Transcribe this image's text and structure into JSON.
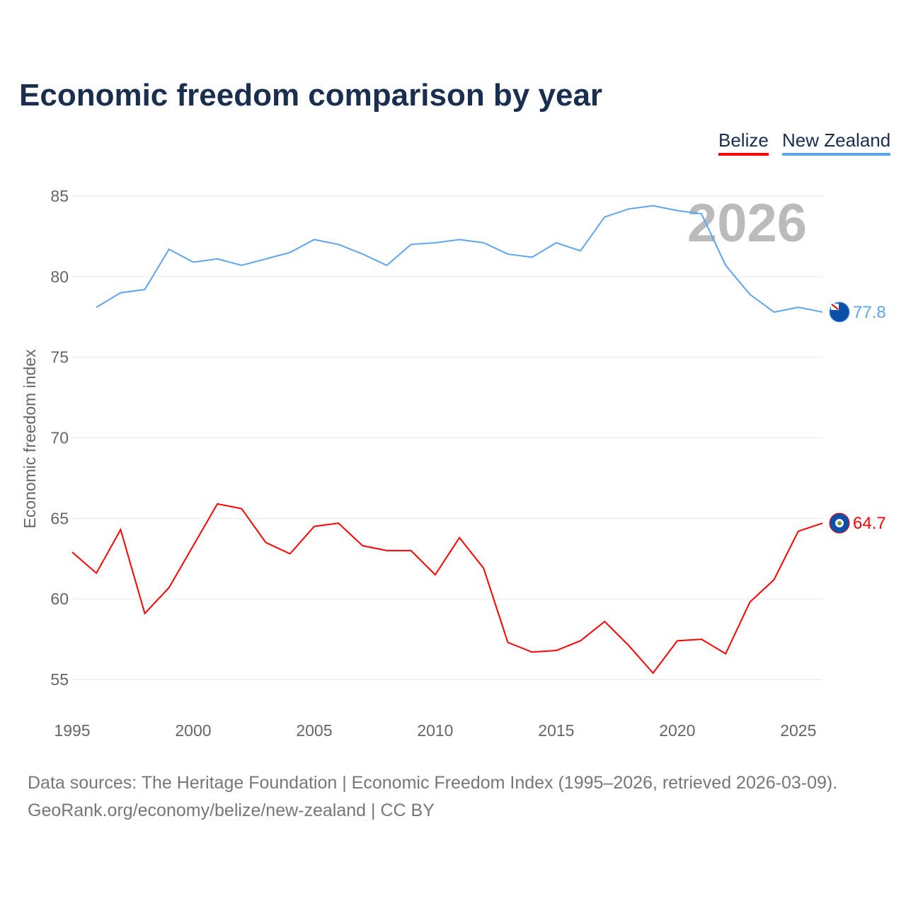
{
  "title": "Economic freedom comparison by year",
  "legend": [
    {
      "label": "Belize",
      "color": "#ff0000"
    },
    {
      "label": "New Zealand",
      "color": "#5ea5ec"
    }
  ],
  "source_line1": "Data sources: The Heritage Foundation | Economic Freedom Index (1995–2026, retrieved 2026-03-09).",
  "source_line2": "GeoRank.org/economy/belize/new-zealand | CC BY",
  "chart_data": {
    "type": "line",
    "title": "Economic freedom comparison by year",
    "ylabel": "Economic freedom index",
    "xlabel": "",
    "year_watermark": "2026",
    "xlim": [
      1995,
      2026
    ],
    "ylim": [
      55,
      85
    ],
    "xticks": [
      1995,
      2000,
      2005,
      2010,
      2015,
      2020,
      2025
    ],
    "yticks": [
      55,
      60,
      65,
      70,
      75,
      80,
      85
    ],
    "grid": true,
    "legend_position": "top-right",
    "series": [
      {
        "name": "Belize",
        "color": "#ff0000",
        "end_label": "64.7",
        "flag": "belize-flag",
        "x": [
          1995,
          1996,
          1997,
          1998,
          1999,
          2000,
          2001,
          2002,
          2003,
          2004,
          2005,
          2006,
          2007,
          2008,
          2009,
          2010,
          2011,
          2012,
          2013,
          2014,
          2015,
          2016,
          2017,
          2018,
          2019,
          2020,
          2021,
          2022,
          2023,
          2024,
          2025,
          2026
        ],
        "values": [
          62.9,
          61.6,
          64.3,
          59.1,
          60.7,
          63.3,
          65.9,
          65.6,
          63.5,
          62.8,
          64.5,
          64.7,
          63.3,
          63.0,
          63.0,
          61.5,
          63.8,
          61.9,
          57.3,
          56.7,
          56.8,
          57.4,
          58.6,
          57.1,
          55.4,
          57.4,
          57.5,
          56.6,
          59.8,
          61.2,
          64.2,
          64.7
        ]
      },
      {
        "name": "New Zealand",
        "color": "#5ea5ec",
        "end_label": "77.8",
        "flag": "new-zealand-flag",
        "x": [
          1996,
          1997,
          1998,
          1999,
          2000,
          2001,
          2002,
          2003,
          2004,
          2005,
          2006,
          2007,
          2008,
          2009,
          2010,
          2011,
          2012,
          2013,
          2014,
          2015,
          2016,
          2017,
          2018,
          2019,
          2020,
          2021,
          2022,
          2023,
          2024,
          2025,
          2026
        ],
        "values": [
          78.1,
          79.0,
          79.2,
          81.7,
          80.9,
          81.1,
          80.7,
          81.1,
          81.5,
          82.3,
          82.0,
          81.4,
          80.7,
          82.0,
          82.1,
          82.3,
          82.1,
          81.4,
          81.2,
          82.1,
          81.6,
          83.7,
          84.2,
          84.4,
          84.1,
          83.9,
          80.7,
          78.9,
          77.8,
          78.1,
          77.8
        ]
      }
    ]
  }
}
